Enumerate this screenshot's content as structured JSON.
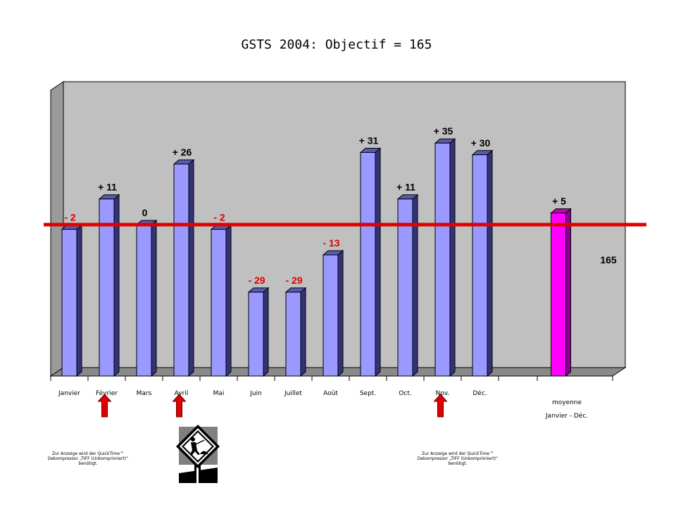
{
  "chart_data": {
    "type": "bar",
    "title": "GSTS 2004: Objectif = 165",
    "target": 165,
    "target_label": "165",
    "categories": [
      "Janvier",
      "Février",
      "Mars",
      "Avril",
      "Mai",
      "Juin",
      "Juillet",
      "Août",
      "Sept.",
      "Oct.",
      "Nov.",
      "Déc.",
      ""
    ],
    "tick_labels": [
      "Janvier",
      "Février",
      "Mars",
      "Avril",
      "Mai",
      "Juin",
      "Juillet",
      "Août",
      "Sept.",
      "Oct.",
      "Nov.",
      "Déc.",
      "moyenne",
      "Janvier - Déc."
    ],
    "values": [
      163,
      176,
      165,
      191,
      163,
      136,
      136,
      152,
      196,
      176,
      200,
      195,
      170
    ],
    "deviation_labels": [
      "- 2",
      "+ 11",
      "0",
      "+ 26",
      "- 2",
      "- 29",
      "- 29",
      "- 13",
      "+ 31",
      "+ 11",
      "+ 35",
      "+ 30",
      "+ 5"
    ],
    "ylim": [
      100,
      230
    ],
    "grid": false,
    "colors": {
      "bar": "#9999ff",
      "average_bar": "#ff00ff",
      "target_line": "#e00000",
      "negative_label": "#e00000",
      "positive_label": "#000000",
      "plot_background": "#c0c0c0"
    }
  },
  "notes": {
    "quicktime_left": [
      "Zur Anzeige wird der QuickTime™",
      "Dekompressor „TIFF (Unkomprimiert)“",
      "benötigt."
    ],
    "quicktime_right": [
      "Zur Anzeige wird der QuickTime™",
      "Dekompressor „TIFF (Unkomprimiert)“",
      "benötigt."
    ]
  },
  "markers": {
    "arrows_under": [
      "Février",
      "Avril",
      "Nov."
    ],
    "arrow_color": "#e00000",
    "icon": "road-work-sign-icon"
  }
}
